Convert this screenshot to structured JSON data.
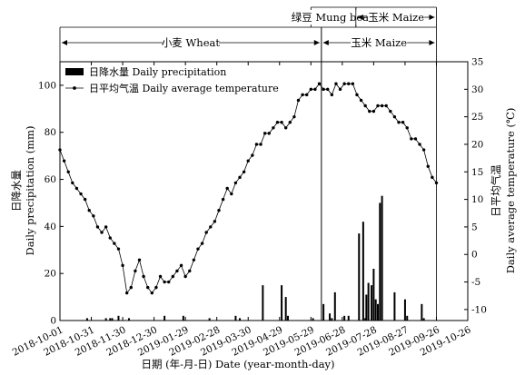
{
  "chart_data": {
    "type": "bar+line",
    "xlabel": "日期 (年-月-日) Date (year-month-day)",
    "ylabel_left": [
      "日降水量",
      "Daily precipitation (mm)"
    ],
    "ylabel_right": [
      "日平均气温",
      "Daily average temperature (℃)"
    ],
    "x_ticks": [
      "2018-10-01",
      "2018-10-31",
      "2018-11-30",
      "2018-12-30",
      "2019-01-29",
      "2019-02-28",
      "2019-03-30",
      "2019-04-29",
      "2019-05-29",
      "2019-06-28",
      "2019-07-28",
      "2019-08-27",
      "2019-09-26",
      "2019-10-26"
    ],
    "y_left": {
      "min": 0,
      "max": 110,
      "ticks": [
        0,
        20,
        40,
        60,
        80,
        100
      ]
    },
    "y_right": {
      "min": -12,
      "max": 35,
      "ticks": [
        -10,
        -5,
        0,
        5,
        10,
        15,
        20,
        25,
        30,
        35
      ]
    },
    "legend": {
      "position": "top-left",
      "items": [
        "日降水量 Daily precipitation",
        "日平均气温 Daily average temperature"
      ]
    },
    "periods": [
      {
        "label": "绿豆 Mung bean",
        "start_day": 240,
        "end_day": 283,
        "row": 1
      },
      {
        "label": "玉米 Maize",
        "start_day": 283,
        "end_day": 360,
        "row": 1
      },
      {
        "label": "小麦 Wheat",
        "start_day": 0,
        "end_day": 250,
        "row": 2
      },
      {
        "label": "玉米 Maize",
        "start_day": 250,
        "end_day": 360,
        "row": 2
      }
    ],
    "precipitation": {
      "name": "日降水量 Daily precipitation",
      "days": [
        26,
        44,
        48,
        50,
        56,
        66,
        100,
        118,
        143,
        168,
        172,
        194,
        212,
        216,
        218,
        242,
        252,
        258,
        260,
        263,
        272,
        276,
        286,
        290,
        292,
        293,
        295,
        298,
        300,
        302,
        304,
        306,
        308,
        320,
        330,
        332,
        346,
        348
      ],
      "values": [
        1,
        1,
        1,
        1,
        2,
        1,
        2,
        2,
        1,
        2,
        1,
        15,
        15,
        10,
        2,
        1,
        7,
        3,
        1,
        12,
        2,
        2,
        37,
        42,
        1,
        11,
        16,
        15,
        22,
        9,
        7,
        50,
        53,
        12,
        9,
        2,
        7,
        1
      ]
    },
    "temperature": {
      "name": "日平均气温 Daily average temperature",
      "days": [
        0,
        4,
        8,
        12,
        16,
        20,
        24,
        28,
        32,
        36,
        40,
        44,
        48,
        52,
        56,
        60,
        64,
        68,
        72,
        76,
        80,
        84,
        88,
        92,
        96,
        100,
        104,
        108,
        112,
        116,
        120,
        124,
        128,
        132,
        136,
        140,
        144,
        148,
        152,
        156,
        160,
        164,
        168,
        172,
        176,
        180,
        184,
        188,
        192,
        196,
        200,
        204,
        208,
        212,
        216,
        220,
        224,
        228,
        232,
        236,
        240,
        244,
        248,
        252,
        256,
        260,
        264,
        268,
        272,
        276,
        280,
        284,
        288,
        292,
        296,
        300,
        304,
        308,
        312,
        316,
        320,
        324,
        328,
        332,
        336,
        340,
        344,
        348,
        352,
        356,
        360
      ],
      "values": [
        19,
        17,
        15,
        13,
        12,
        11,
        10,
        8,
        7,
        5,
        4,
        5,
        3,
        2,
        1,
        -2,
        -7,
        -6,
        -3,
        -1,
        -4,
        -6,
        -7,
        -6,
        -4,
        -5,
        -5,
        -4,
        -3,
        -2,
        -4,
        -3,
        -1,
        1,
        2,
        4,
        5,
        6,
        8,
        10,
        12,
        11,
        13,
        14,
        15,
        17,
        18,
        20,
        20,
        22,
        22,
        23,
        24,
        24,
        23,
        24,
        25,
        28,
        29,
        29,
        30,
        30,
        31,
        30,
        30,
        29,
        31,
        30,
        31,
        31,
        31,
        29,
        28,
        27,
        26,
        26,
        27,
        27,
        27,
        26,
        25,
        24,
        24,
        23,
        21,
        21,
        20,
        19,
        16,
        14,
        13
      ]
    }
  }
}
